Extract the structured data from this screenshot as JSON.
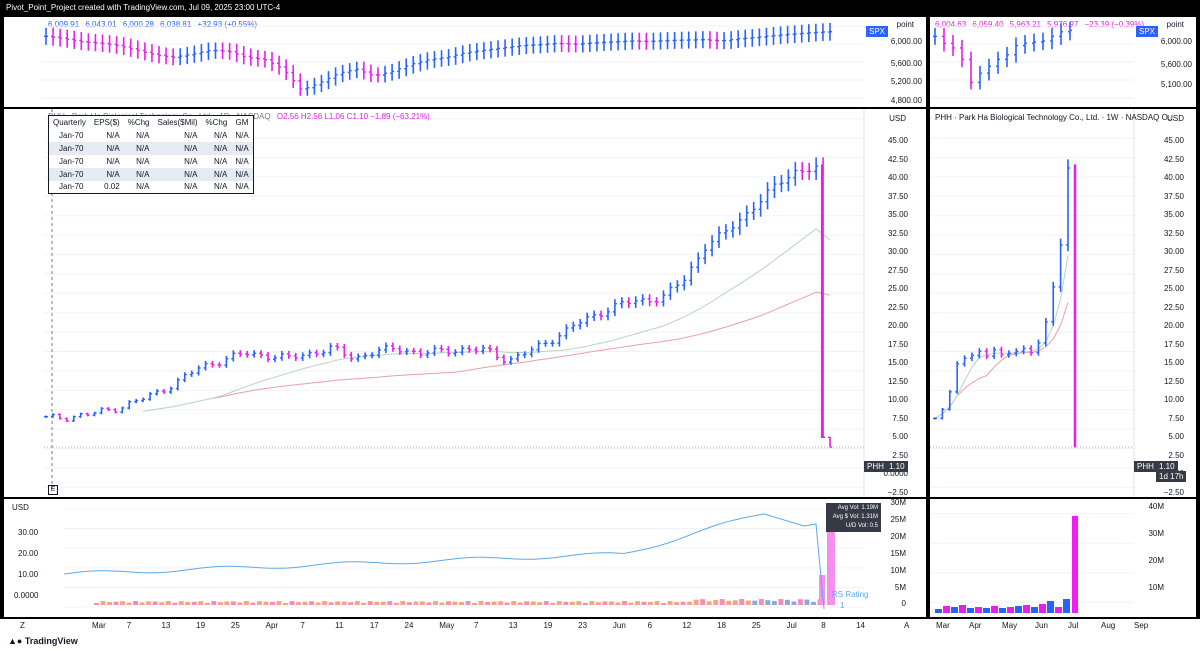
{
  "header": {
    "title": "Pivot_Point_Project created with TradingView.com, Jul 09, 2025 23:00 UTC-4"
  },
  "spx_left": {
    "ohlc": [
      "6,009.91",
      "6,043.01",
      "6,000.28",
      "6,038.81",
      "+32.93 (+0.55%)"
    ],
    "axis_title": "point",
    "symbol": "SPX",
    "y_ticks": [
      "6,000.00",
      "5,600.00",
      "5,200.00",
      "4,800.00"
    ]
  },
  "spx_right": {
    "ohlc": [
      "6,004.63",
      "6,059.40",
      "5,963.21",
      "5,976.97",
      "−23.39 (−0.39%)"
    ],
    "axis_title": "point",
    "symbol": "SPX",
    "y_ticks": [
      "6,000.00",
      "5,600.00",
      "5,100.00"
    ]
  },
  "main_left": {
    "legend_title": "PHH · Park Ha Biological Technology Co., Ltd. · 1D · NASDAQ",
    "legend_values": "O2.56  H2.56  L1.06  C1.10  −1.89 (−63.21%)",
    "currency": "USD",
    "y_ticks": [
      "45.00",
      "42.50",
      "40.00",
      "37.50",
      "35.00",
      "32.50",
      "30.00",
      "27.50",
      "25.00",
      "22.50",
      "20.00",
      "17.50",
      "15.00",
      "12.50",
      "10.00",
      "7.50",
      "5.00",
      "2.50",
      "0.0000",
      "−2.50"
    ],
    "symbol": "PHH",
    "last_price": "1.10",
    "earnings_marker": "E"
  },
  "main_right": {
    "legend_title": "PHH · Park Ha Biological Technology Co., Ltd. · 1W · NASDAQ  O...",
    "currency": "USD",
    "y_ticks": [
      "45.00",
      "42.50",
      "40.00",
      "37.50",
      "35.00",
      "32.50",
      "30.00",
      "27.50",
      "25.00",
      "22.50",
      "20.00",
      "17.50",
      "15.00",
      "12.50",
      "10.00",
      "7.50",
      "5.00",
      "2.50",
      "0.0000",
      "−2.50"
    ],
    "symbol": "PHH",
    "last_price": "1.10",
    "countdown": "1d 17h"
  },
  "fundamentals": {
    "headers": [
      "Quarterly",
      "EPS($)",
      "%Chg",
      "Sales($Mil)",
      "%Chg",
      "GM"
    ],
    "rows": [
      [
        "Jan-70",
        "N/A",
        "N/A",
        "N/A",
        "N/A",
        "N/A"
      ],
      [
        "Jan-70",
        "N/A",
        "N/A",
        "N/A",
        "N/A",
        "N/A"
      ],
      [
        "Jan-70",
        "N/A",
        "N/A",
        "N/A",
        "N/A",
        "N/A"
      ],
      [
        "Jan-70",
        "N/A",
        "N/A",
        "N/A",
        "N/A",
        "N/A"
      ],
      [
        "Jan-70",
        "0.02",
        "N/A",
        "N/A",
        "N/A",
        "N/A"
      ]
    ]
  },
  "volume_left": {
    "currency": "USD",
    "left_ticks": [
      "30.00",
      "20.00",
      "10.00",
      "0.0000"
    ],
    "right_ticks": [
      "30M",
      "25M",
      "20M",
      "15M",
      "10M",
      "5M",
      "0"
    ],
    "stats": [
      "Avg Vol:  1.19M",
      "Avg $ Vol:  1.31M",
      "U/D Vol:  0.5"
    ],
    "rs_label": "RS Rating",
    "rs_value": "1"
  },
  "volume_right": {
    "right_ticks": [
      "40M",
      "30M",
      "20M",
      "10M"
    ]
  },
  "time_axis_left": [
    "Mar",
    "7",
    "13",
    "19",
    "25",
    "Apr",
    "7",
    "11",
    "17",
    "24",
    "May",
    "7",
    "13",
    "19",
    "23",
    "Jun",
    "6",
    "12",
    "18",
    "25",
    "Jul",
    "8",
    "14"
  ],
  "time_axis_right": [
    "Mar",
    "Apr",
    "May",
    "Jun",
    "Jul",
    "Aug",
    "Sep"
  ],
  "footer": {
    "brand": "TradingView"
  },
  "colors": {
    "up": "#2962ff",
    "down": "#e91ee9",
    "ma_short": "#b7d4c4",
    "ma_long": "#e8a0a8",
    "avg_volume": "#5fa8e8"
  },
  "chart_data": {
    "type": "ohlc",
    "symbol": "PHH",
    "daily_close_path": [
      5.2,
      5.4,
      5.8,
      6.5,
      7.5,
      8.8,
      10.5,
      12.5,
      13.5,
      14.5,
      14.2,
      13.8,
      14.5,
      15.2,
      13.8,
      14.8,
      15.2,
      14.5,
      14.8,
      15.1,
      14.9,
      13.5,
      14.8,
      16.5,
      18.5,
      20.0,
      21.5,
      22.0,
      22.5,
      25.0,
      30.0,
      32.0,
      35.0,
      38.0,
      40.5,
      41.0,
      2.5,
      1.1
    ],
    "ylim": [
      -2.5,
      45
    ]
  }
}
